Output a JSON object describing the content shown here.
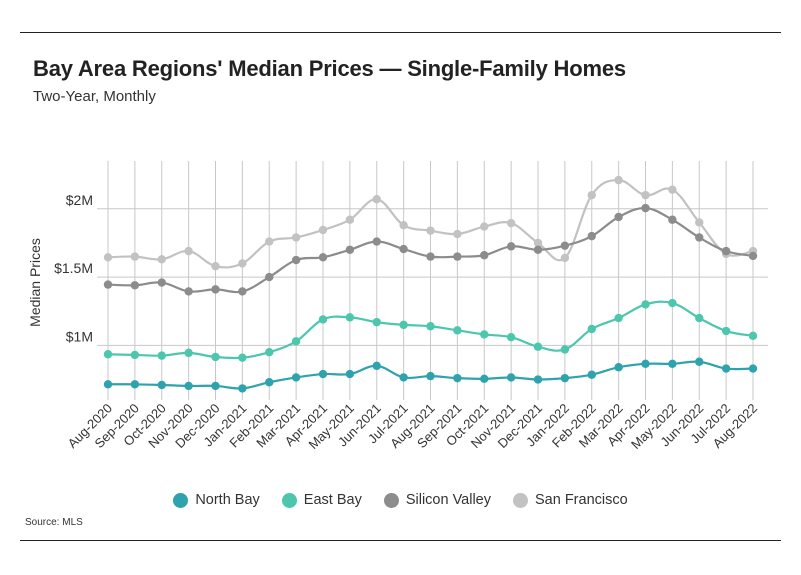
{
  "title": "Bay Area Regions' Median Prices — Single-Family Homes",
  "subtitle": "Two-Year, Monthly",
  "source": "Source:  MLS",
  "chart_data": {
    "type": "line",
    "ylabel": "Median Prices",
    "ylim": [
      600000,
      2350000
    ],
    "yticks": [
      1000000,
      1500000,
      2000000
    ],
    "ytick_labels": [
      "$1M",
      "$1.5M",
      "$2M"
    ],
    "grid": "vertical and horizontal",
    "legend_position": "bottom",
    "categories": [
      "Aug-2020",
      "Sep-2020",
      "Oct-2020",
      "Nov-2020",
      "Dec-2020",
      "Jan-2021",
      "Feb-2021",
      "Mar-2021",
      "Apr-2021",
      "May-2021",
      "Jun-2021",
      "Jul-2021",
      "Aug-2021",
      "Sep-2021",
      "Oct-2021",
      "Nov-2021",
      "Dec-2021",
      "Jan-2022",
      "Feb-2022",
      "Mar-2022",
      "Apr-2022",
      "May-2022",
      "Jun-2022",
      "Jul-2022",
      "Aug-2022"
    ],
    "series": [
      {
        "name": "North Bay",
        "color": "#2ea3ad",
        "values": [
          715000,
          715000,
          710000,
          703000,
          703000,
          685000,
          730000,
          765000,
          790000,
          790000,
          850000,
          765000,
          775000,
          760000,
          755000,
          765000,
          750000,
          760000,
          785000,
          840000,
          865000,
          865000,
          880000,
          830000,
          830000
        ]
      },
      {
        "name": "East Bay",
        "color": "#4cc6ad",
        "values": [
          935000,
          930000,
          925000,
          945000,
          915000,
          910000,
          950000,
          1030000,
          1190000,
          1205000,
          1170000,
          1150000,
          1140000,
          1110000,
          1080000,
          1060000,
          990000,
          970000,
          1120000,
          1200000,
          1300000,
          1310000,
          1200000,
          1105000,
          1070000
        ]
      },
      {
        "name": "Silicon Valley",
        "color": "#8c8c8c",
        "values": [
          1445000,
          1440000,
          1460000,
          1395000,
          1410000,
          1395000,
          1500000,
          1625000,
          1645000,
          1700000,
          1760000,
          1705000,
          1650000,
          1650000,
          1660000,
          1725000,
          1700000,
          1730000,
          1800000,
          1940000,
          2005000,
          1920000,
          1790000,
          1690000,
          1655000
        ]
      },
      {
        "name": "San Francisco",
        "color": "#c2c2c2",
        "values": [
          1645000,
          1650000,
          1630000,
          1690000,
          1580000,
          1600000,
          1760000,
          1790000,
          1845000,
          1920000,
          2070000,
          1880000,
          1840000,
          1815000,
          1870000,
          1895000,
          1750000,
          1640000,
          2100000,
          2210000,
          2100000,
          2140000,
          1900000,
          1670000,
          1690000
        ]
      }
    ]
  }
}
